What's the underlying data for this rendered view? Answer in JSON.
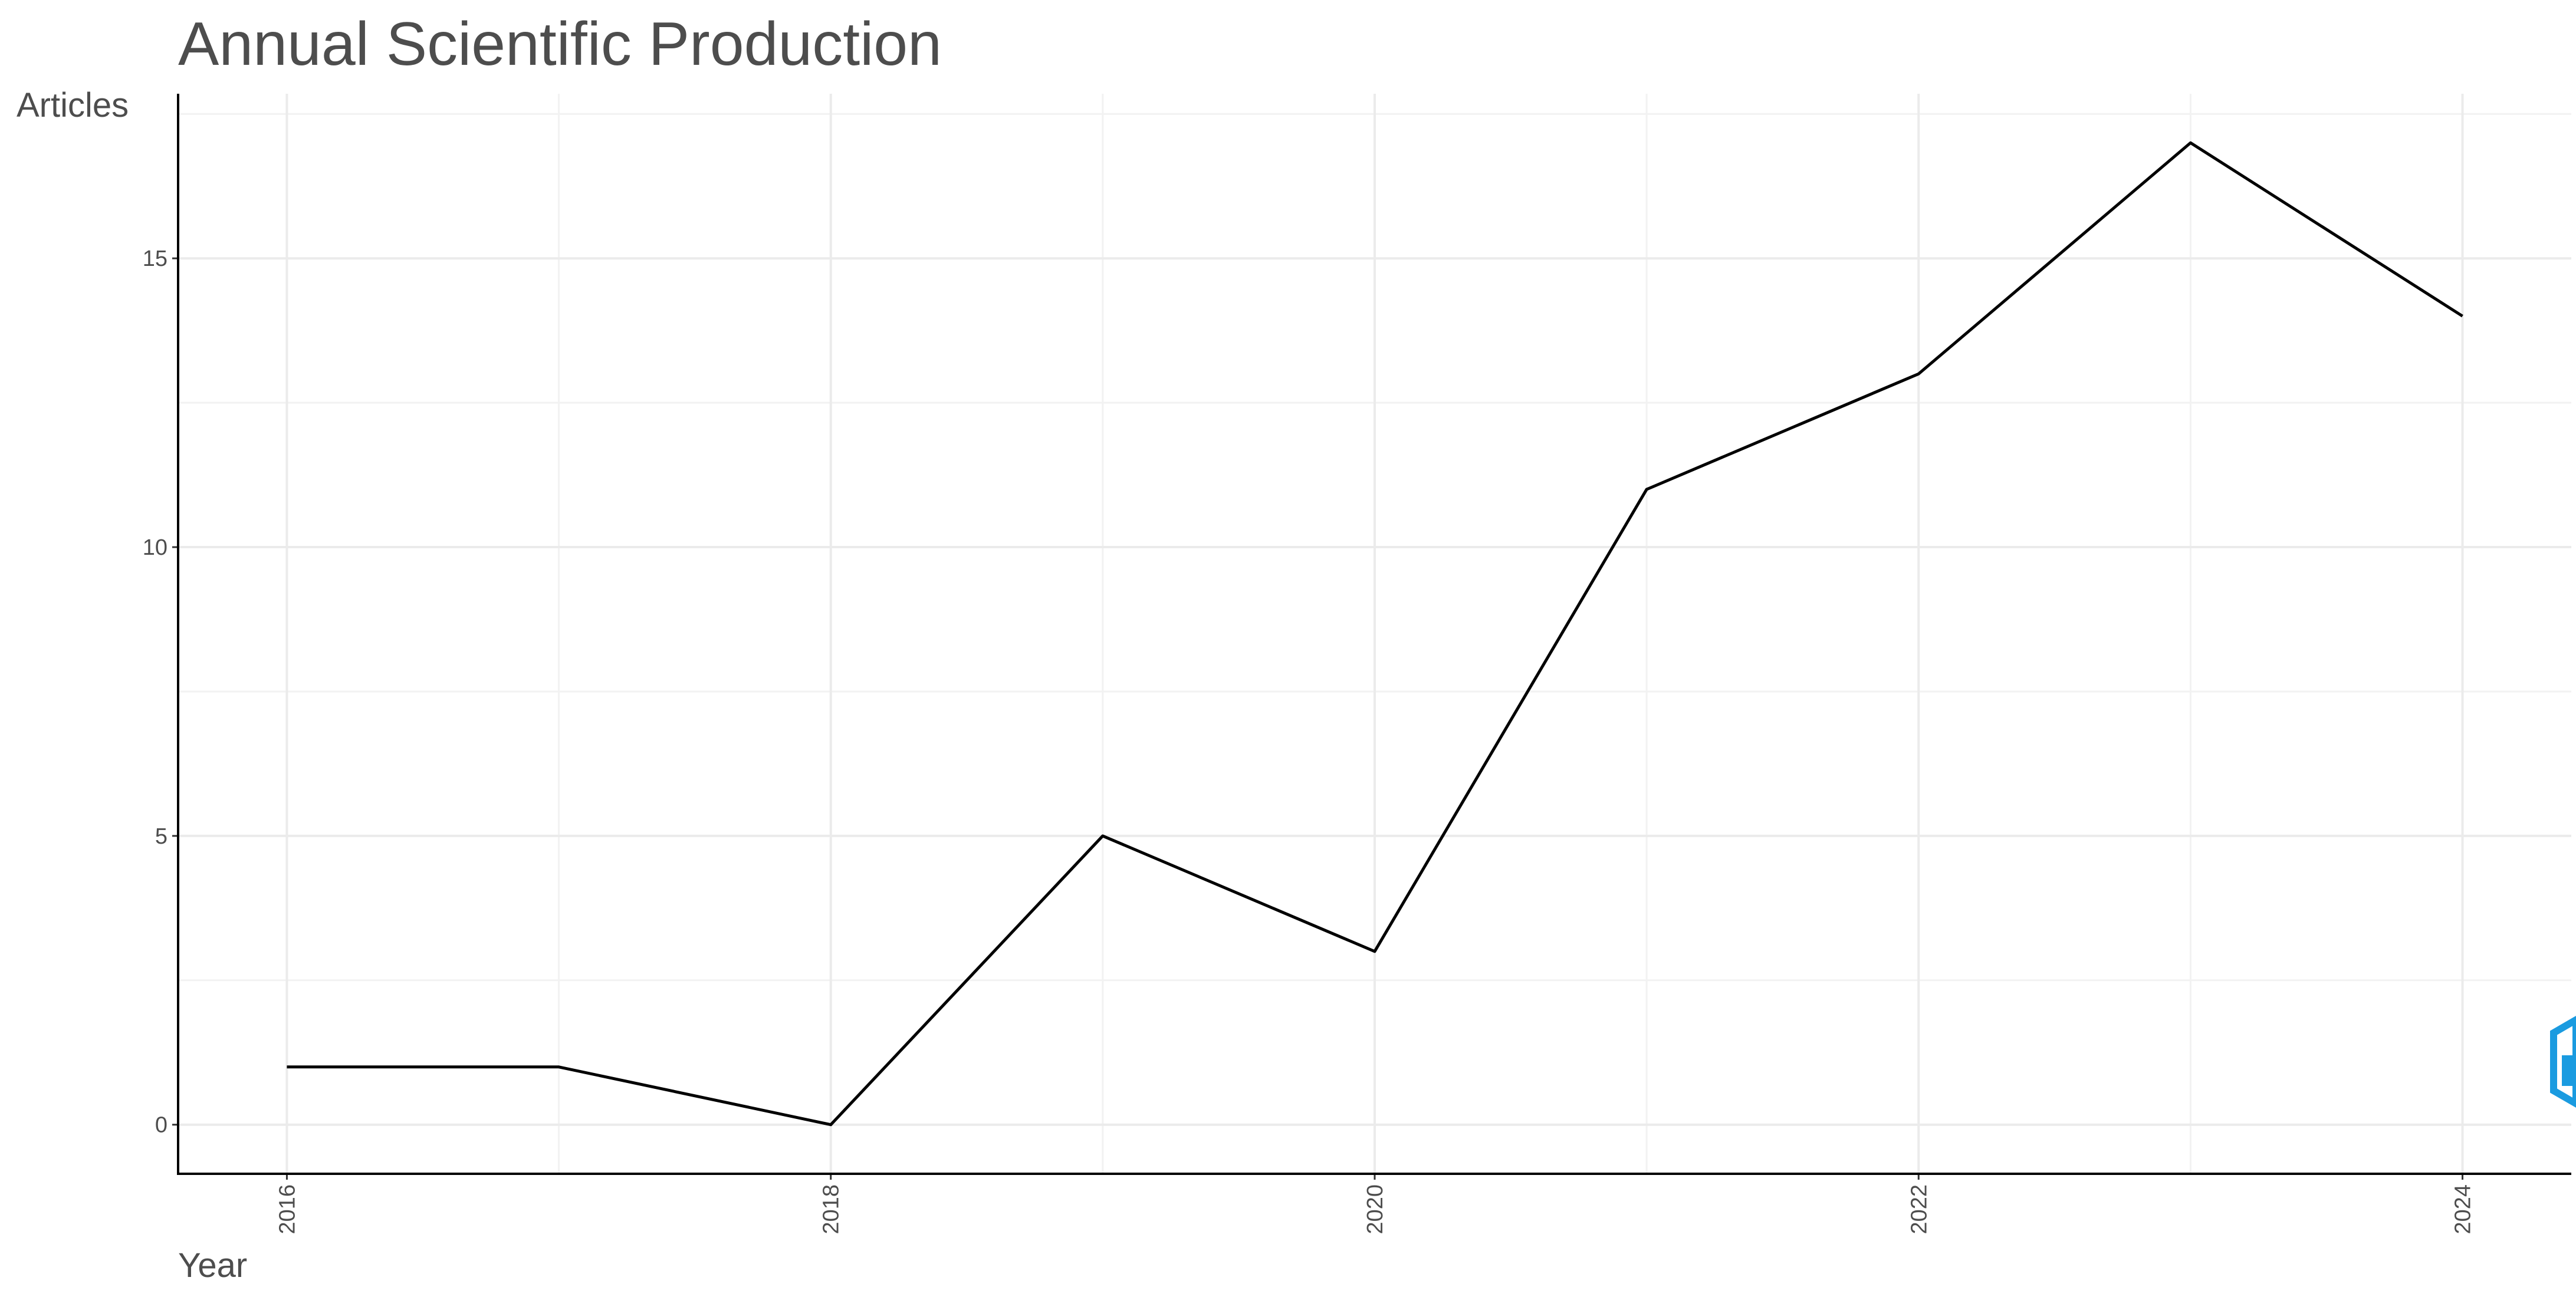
{
  "chart_data": {
    "type": "line",
    "title": "Annual Scientific Production",
    "x_label": "Year",
    "y_label": "Articles",
    "x": [
      2016,
      2017,
      2018,
      2019,
      2020,
      2021,
      2022,
      2023,
      2024
    ],
    "series": [
      {
        "color": "#000000",
        "values": [
          1,
          1,
          0,
          5,
          3,
          11,
          13,
          17,
          14
        ]
      }
    ],
    "xlim": [
      2015.6,
      2024.4
    ],
    "xticks": [
      2016,
      2018,
      2020,
      2022,
      2024
    ],
    "ylim": [
      -0.85,
      17.85
    ],
    "yticks": [
      0,
      5,
      10,
      15
    ],
    "grid": true
  }
}
